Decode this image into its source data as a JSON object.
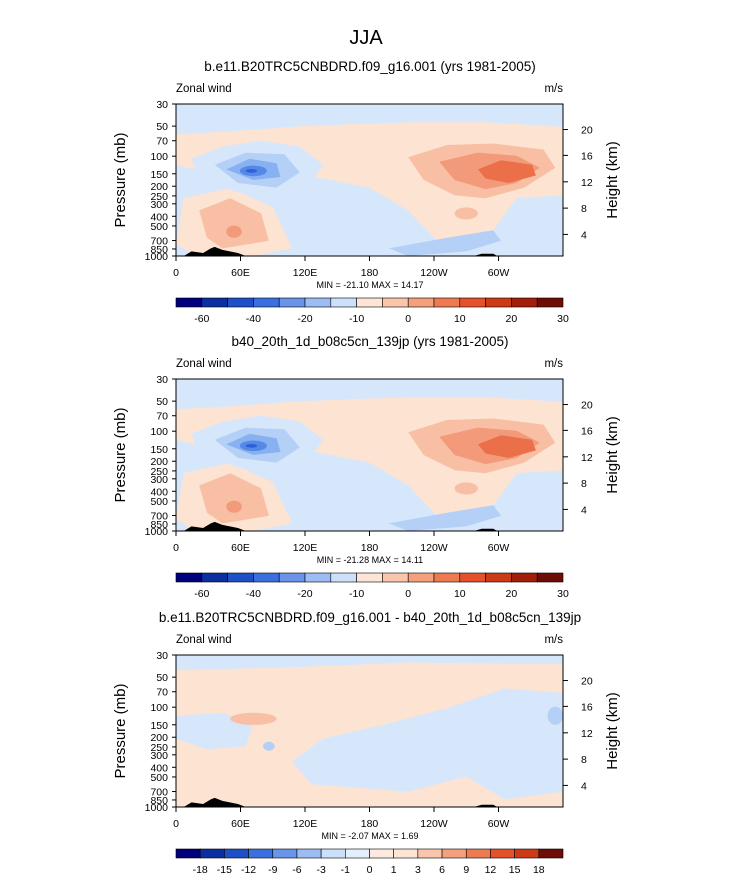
{
  "figure": {
    "title": "JJA"
  },
  "chart_data": [
    {
      "type": "contour",
      "title": "b.e11.B20TRC5CNBDRD.f09_g16.001 (yrs 1981-2005)",
      "left_label": "Zonal wind",
      "right_label": "m/s",
      "ylabel": "Pressure (mb)",
      "ylabel_right": "Height (km)",
      "x_ticks": [
        "0",
        "60E",
        "120E",
        "180",
        "120W",
        "60W"
      ],
      "y_ticks": [
        "30",
        "50",
        "70",
        "100",
        "150",
        "200",
        "250",
        "300",
        "400",
        "500",
        "700",
        "850",
        "1000"
      ],
      "height_ticks": [
        "20",
        "16",
        "12",
        "8",
        "4"
      ],
      "stats": "MIN = -21.10  MAX =  14.17",
      "colorbar_labels": [
        "-60",
        "-40",
        "-20",
        "-10",
        "0",
        "10",
        "20",
        "30"
      ]
    },
    {
      "type": "contour",
      "title": "b40_20th_1d_b08c5cn_139jp (yrs 1981-2005)",
      "left_label": "Zonal wind",
      "right_label": "m/s",
      "ylabel": "Pressure (mb)",
      "ylabel_right": "Height (km)",
      "x_ticks": [
        "0",
        "60E",
        "120E",
        "180",
        "120W",
        "60W"
      ],
      "y_ticks": [
        "30",
        "50",
        "70",
        "100",
        "150",
        "200",
        "250",
        "300",
        "400",
        "500",
        "700",
        "850",
        "1000"
      ],
      "height_ticks": [
        "20",
        "16",
        "12",
        "8",
        "4"
      ],
      "stats": "MIN = -21.28  MAX =  14.11",
      "colorbar_labels": [
        "-60",
        "-40",
        "-20",
        "-10",
        "0",
        "10",
        "20",
        "30"
      ]
    },
    {
      "type": "contour",
      "title": "b.e11.B20TRC5CNBDRD.f09_g16.001 - b40_20th_1d_b08c5cn_139jp",
      "left_label": "Zonal wind",
      "right_label": "m/s",
      "ylabel": "Pressure (mb)",
      "ylabel_right": "Height (km)",
      "x_ticks": [
        "0",
        "60E",
        "120E",
        "180",
        "120W",
        "60W"
      ],
      "y_ticks": [
        "30",
        "50",
        "70",
        "100",
        "150",
        "200",
        "250",
        "300",
        "400",
        "500",
        "700",
        "850",
        "1000"
      ],
      "height_ticks": [
        "20",
        "16",
        "12",
        "8",
        "4"
      ],
      "stats": "MIN = -2.07  MAX =  1.69",
      "colorbar_labels": [
        "-18",
        "-15",
        "-12",
        "-9",
        "-6",
        "-3",
        "-1",
        "0",
        "1",
        "3",
        "6",
        "9",
        "12",
        "15",
        "18"
      ]
    }
  ],
  "colors": {
    "pos1": "#fde3d2",
    "pos2": "#f8bfa5",
    "pos3": "#f29a79",
    "pos4": "#eb6f49",
    "neg1": "#d6e7fb",
    "neg2": "#b4d0f7",
    "neg3": "#87b1f1",
    "neg4": "#5689e6",
    "neg5": "#2e5fd8",
    "topo": "#000000",
    "colorbar_main": [
      "#00007f",
      "#0b2ea0",
      "#1f4fc8",
      "#3b6fe0",
      "#6a93ea",
      "#9cbdf3",
      "#cde0fa",
      "#fde5d5",
      "#f9c6ac",
      "#f4a07d",
      "#ee7a52",
      "#e5512a",
      "#cc3a16",
      "#a21e0b",
      "#6e0c06"
    ],
    "colorbar_diff": [
      "#00007f",
      "#0b2ea0",
      "#1f4fc8",
      "#3b6fe0",
      "#6a93ea",
      "#9cbdf3",
      "#cde0fa",
      "#e3effd",
      "#fdeadf",
      "#fde5d5",
      "#f9c6ac",
      "#f4a07d",
      "#ee7a52",
      "#e5512a",
      "#cc3a16",
      "#6e0c06"
    ]
  }
}
